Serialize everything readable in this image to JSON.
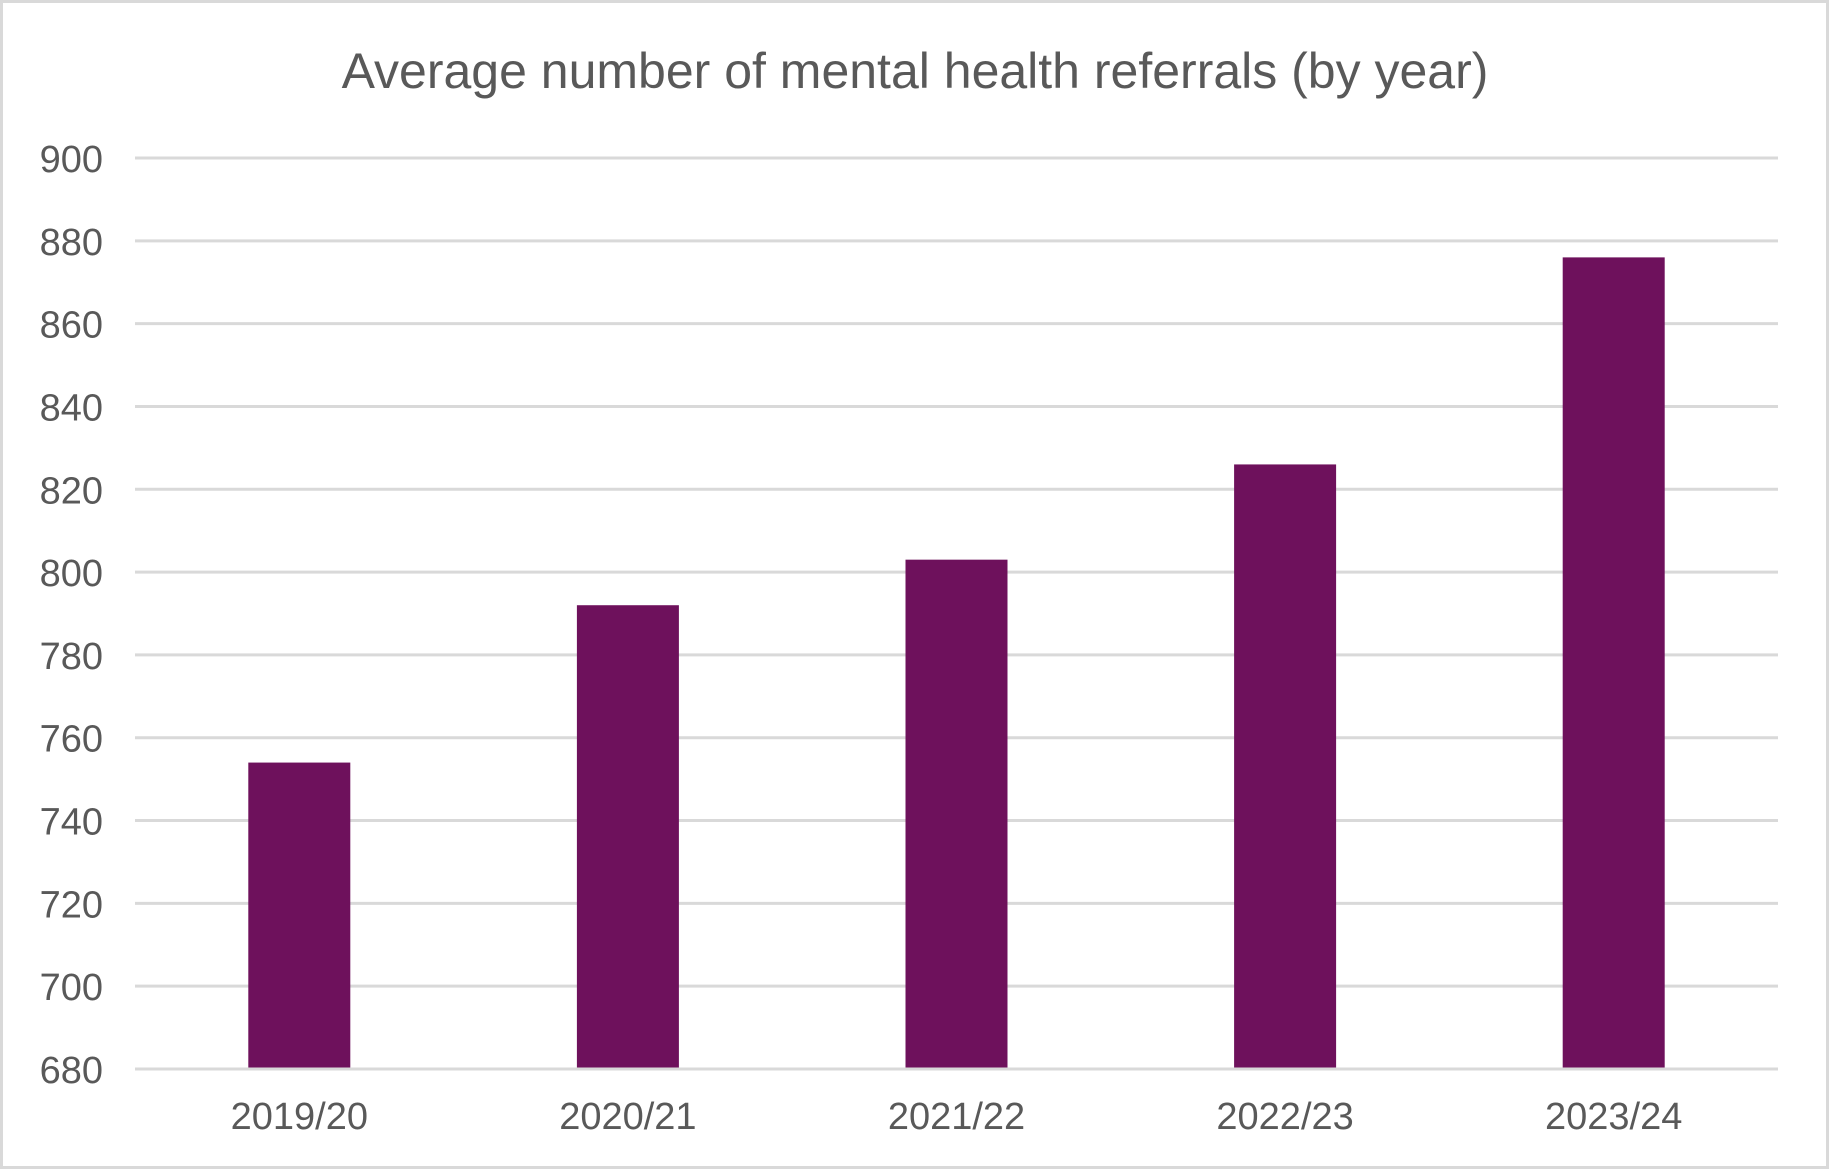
{
  "chart_data": {
    "type": "bar",
    "title": "Average number of mental health referrals (by year)",
    "xlabel": "",
    "ylabel": "",
    "categories": [
      "2019/20",
      "2020/21",
      "2021/22",
      "2022/23",
      "2023/24"
    ],
    "values": [
      754,
      792,
      803,
      826,
      876
    ],
    "ylim": [
      680,
      900
    ],
    "yticks": [
      "680",
      "700",
      "720",
      "740",
      "760",
      "780",
      "800",
      "820",
      "840",
      "860",
      "880",
      "900"
    ],
    "grid": true,
    "legend": "none",
    "colors": {
      "bar": "#6e115c",
      "grid": "#d9d9d9",
      "text": "#595959",
      "border": "#d9d9d9"
    }
  }
}
